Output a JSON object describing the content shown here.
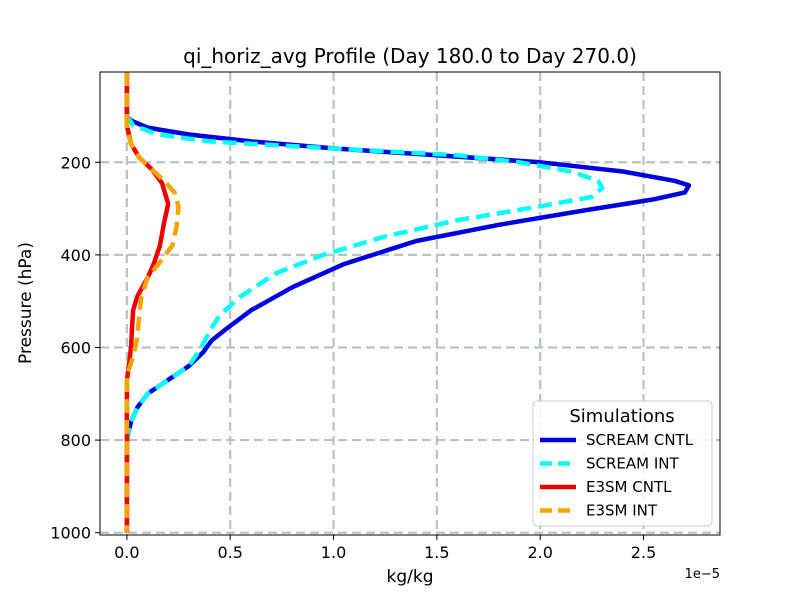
{
  "chart_data": {
    "type": "line",
    "title": "qi_horiz_avg Profile (Day 180.0 to Day 270.0)",
    "xlabel": "kg/kg",
    "ylabel": "Pressure (hPa)",
    "x_offset_label": "1e−5",
    "xlim": [
      -0.13,
      2.87
    ],
    "ylim": [
      1005,
      5
    ],
    "y_inverted": true,
    "grid": true,
    "x_ticks": [
      0.0,
      0.5,
      1.0,
      1.5,
      2.0,
      2.5
    ],
    "x_tick_labels": [
      "0.0",
      "0.5",
      "1.0",
      "1.5",
      "2.0",
      "2.5"
    ],
    "y_ticks": [
      200,
      400,
      600,
      800,
      1000
    ],
    "y_tick_labels": [
      "200",
      "400",
      "600",
      "800",
      "1000"
    ],
    "legend": {
      "title": "Simulations",
      "position": "lower-right"
    },
    "series": [
      {
        "name": "SCREAM CNTL",
        "color": "#0000e0",
        "style": "solid",
        "x": [
          0.0,
          0.0,
          0.02,
          0.1,
          0.3,
          0.6,
          1.0,
          1.5,
          2.0,
          2.4,
          2.65,
          2.72,
          2.7,
          2.55,
          2.2,
          1.8,
          1.4,
          1.05,
          0.8,
          0.6,
          0.48,
          0.41,
          0.37,
          0.3,
          0.2,
          0.1,
          0.05,
          0.02,
          0.01,
          0.0,
          0.0,
          0.0
        ],
        "y": [
          5,
          100,
          110,
          125,
          140,
          155,
          170,
          185,
          200,
          220,
          240,
          250,
          265,
          280,
          305,
          335,
          370,
          420,
          470,
          520,
          560,
          585,
          610,
          640,
          670,
          700,
          730,
          760,
          780,
          800,
          900,
          1000
        ]
      },
      {
        "name": "SCREAM INT",
        "color": "#00ffff",
        "style": "dashed",
        "x": [
          0.0,
          0.0,
          0.03,
          0.15,
          0.4,
          0.8,
          1.2,
          1.6,
          1.9,
          2.15,
          2.28,
          2.3,
          2.25,
          2.0,
          1.6,
          1.25,
          0.95,
          0.72,
          0.55,
          0.45,
          0.4,
          0.36,
          0.3,
          0.2,
          0.1,
          0.05,
          0.02,
          0.01,
          0.0,
          0.0,
          0.0
        ],
        "y": [
          5,
          100,
          120,
          140,
          155,
          165,
          175,
          185,
          200,
          220,
          240,
          255,
          275,
          295,
          325,
          360,
          400,
          440,
          490,
          530,
          565,
          600,
          640,
          670,
          700,
          730,
          760,
          780,
          800,
          900,
          1000
        ]
      },
      {
        "name": "E3SM CNTL",
        "color": "#ee0000",
        "style": "solid",
        "x": [
          0.0,
          0.0,
          0.02,
          0.06,
          0.12,
          0.17,
          0.2,
          0.18,
          0.16,
          0.13,
          0.1,
          0.05,
          0.03,
          0.025,
          0.02,
          0.01,
          0.0,
          0.0,
          0.0
        ],
        "y": [
          5,
          120,
          160,
          190,
          215,
          245,
          290,
          330,
          380,
          420,
          450,
          490,
          520,
          560,
          600,
          640,
          670,
          800,
          1000
        ]
      },
      {
        "name": "E3SM INT",
        "color": "#f5a500",
        "style": "dashed",
        "x": [
          0.0,
          0.0,
          0.02,
          0.06,
          0.12,
          0.18,
          0.23,
          0.25,
          0.24,
          0.22,
          0.17,
          0.1,
          0.07,
          0.06,
          0.05,
          0.03,
          0.0,
          0.0,
          0.0
        ],
        "y": [
          5,
          130,
          160,
          190,
          215,
          240,
          265,
          295,
          340,
          380,
          410,
          450,
          490,
          530,
          580,
          620,
          660,
          800,
          1000
        ]
      }
    ]
  }
}
